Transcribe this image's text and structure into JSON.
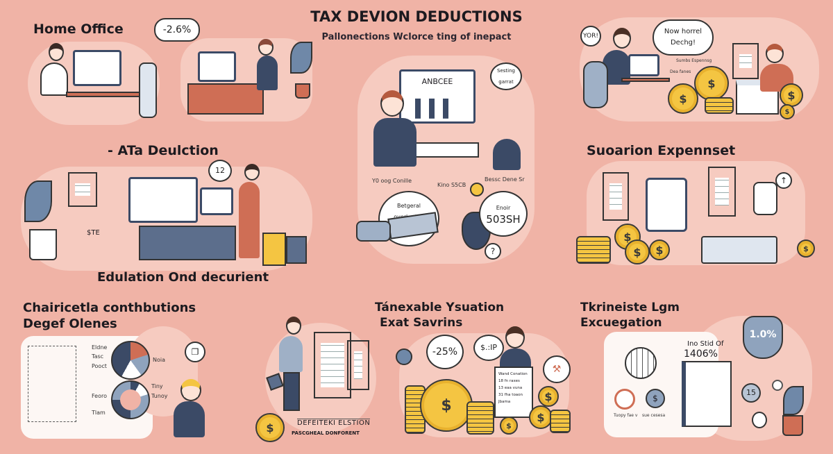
{
  "header": {
    "title": "TAX DEVION DEDUCTIONS",
    "subtitle": "Pallonections  Wclorce ting of inepact"
  },
  "sections": {
    "home_office": {
      "title": "Home Office",
      "bubble": "-2.6%"
    },
    "ata_deduction": {
      "title": "- ATa Deulction",
      "bubble": "12",
      "tag": "$TE"
    },
    "education": {
      "title": "Edulation Ond decurient"
    },
    "charitable": {
      "title_line1": "Chairicetla conthbutions",
      "title_line2": "Degef Olenes",
      "pie_labels": [
        "Eldne",
        "Tasc",
        "Pooct",
        "Noia"
      ],
      "donut_labels": [
        "Tiny",
        "Tunoy",
        "Feoro",
        "Tlam"
      ]
    },
    "taxable": {
      "title_line1": "Tánexable Ysuation",
      "title_line2": "Exat Savrins",
      "bubble_pct": "-25%",
      "bubble_sip": "$.:IP",
      "doc_heading": "DEFEITEKI ELSTION",
      "doc_sub": "PASCGHEAL DONFORENT",
      "receipt_lines": [
        "Wand Conation",
        "18 fn raxes",
        "13 eaa vuna",
        "31 fha toaon",
        "Jbama"
      ]
    },
    "long_term": {
      "title_line1": "Tkrineiste Lgm",
      "title_line2": "Excuegation",
      "doc_heading_1": "Ino Stid Of",
      "doc_heading_2": "1406%",
      "shield": "1.0%",
      "tag": "15",
      "caption_left": "Tuopy fae v",
      "caption_right": "sue cesesa"
    },
    "supplies": {
      "title": "Suoarion Expennset"
    },
    "top_right": {
      "bubble_yor": "YOR!",
      "bubble_line1": "Now horrel",
      "bubble_line2": "Dechg!",
      "label1": "Sumbs Espennsg",
      "label2": "Dea fanes"
    },
    "center": {
      "monitor_label": "ANBCEE",
      "note": "Sesting garrat",
      "label_left": "Y0 oog Conille",
      "label_mid": "Kino S5CB",
      "label_right": "Bessc Dene Sr",
      "bubble_left_1": "Betgeral",
      "bubble_left_2": "overlontier",
      "bubble_right_label": "Enoir",
      "bubble_right_value": "503SH",
      "question": "?"
    }
  },
  "colors": {
    "background": "#f0b3a6",
    "navy": "#3b4a66",
    "coin": "#f4c542",
    "terracotta": "#cf6e55"
  }
}
